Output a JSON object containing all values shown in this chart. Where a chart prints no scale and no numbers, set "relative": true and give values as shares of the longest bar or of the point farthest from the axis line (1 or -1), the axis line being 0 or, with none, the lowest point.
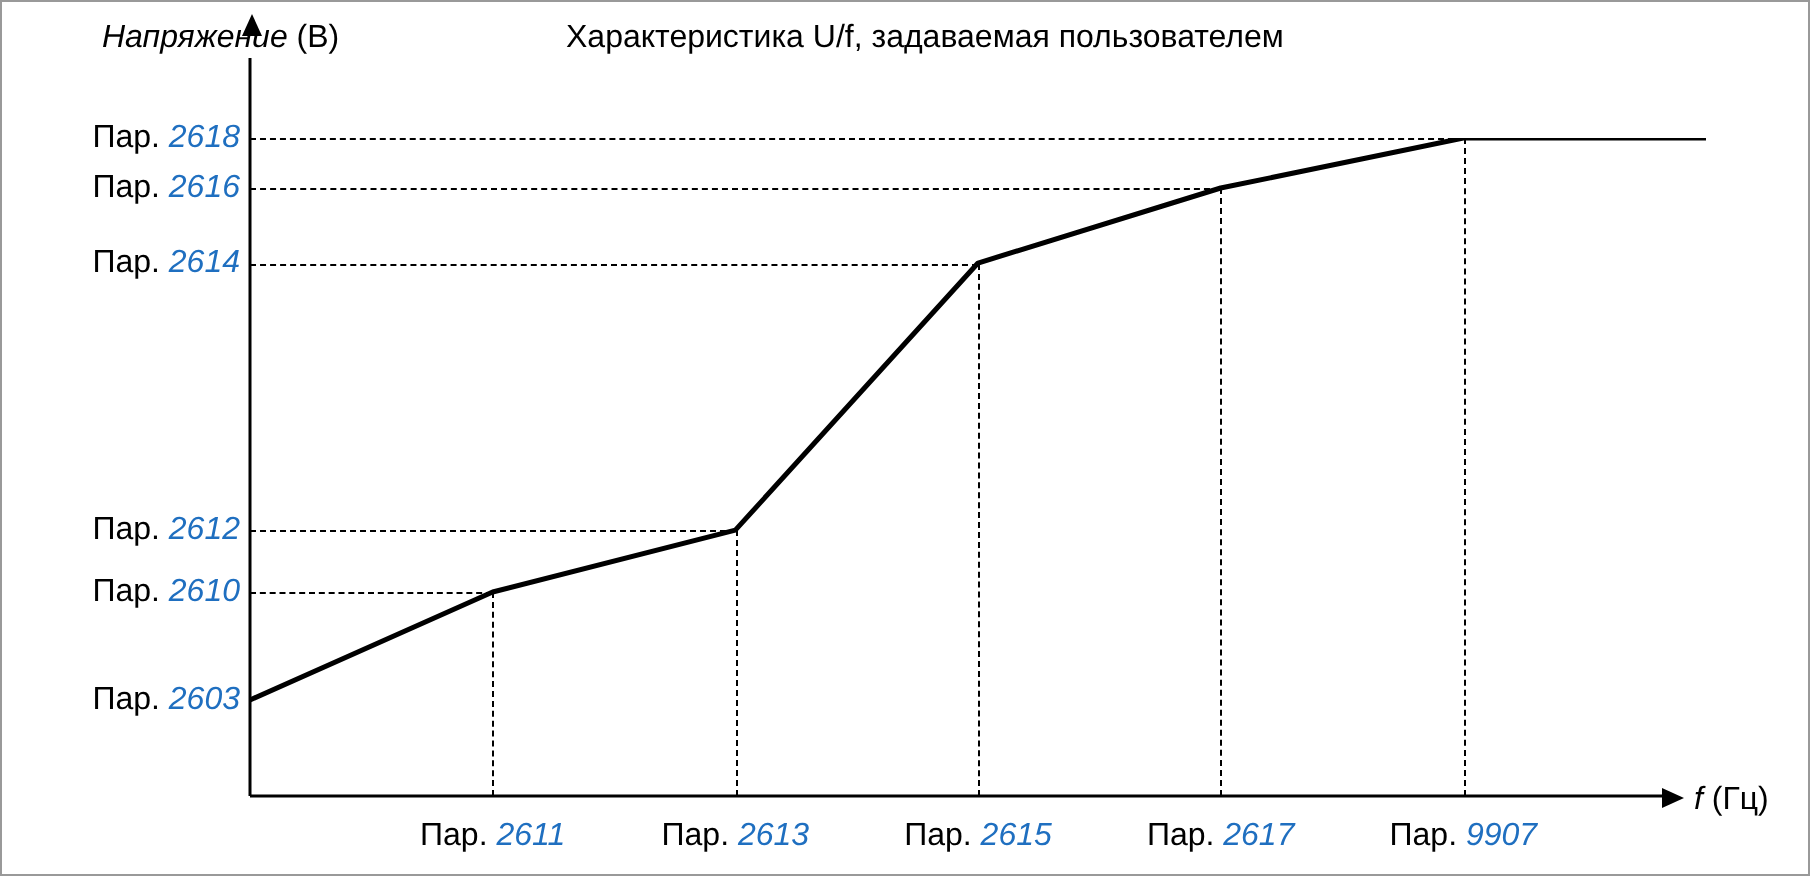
{
  "chart_data": {
    "type": "line",
    "title": "Характеристика U/f, задаваемая пользователем",
    "xlabel": "f (Гц)",
    "ylabel": "Напряжение (В)",
    "relative": true,
    "color": "#000000",
    "line_style": "solid",
    "marker": "none",
    "grid": true,
    "categories": [
      null,
      "Пар. 2611",
      "Пар. 2613",
      "Пар. 2615",
      "Пар. 2617",
      "Пар. 9907",
      null
    ],
    "values": [
      0.146,
      0.31,
      0.404,
      0.81,
      0.924,
      1,
      1
    ],
    "annotations": [
      "Пар. 2603",
      "Пар. 2610",
      "Пар. 2612",
      "Пар. 2614",
      "Пар. 2616",
      "Пар. 2618"
    ]
  }
}
